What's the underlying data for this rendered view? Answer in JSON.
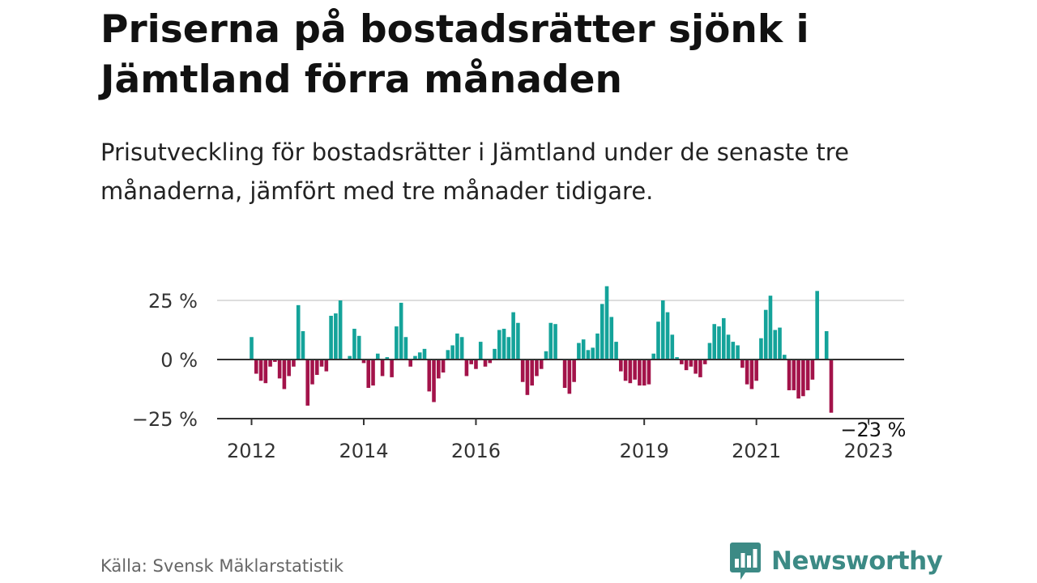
{
  "header": {
    "title": "Priserna på bostadsrätter sjönk i Jämtland förra månaden",
    "subtitle": "Prisutveckling för bostadsrätter i Jämtland under de senaste tre månaderna, jämfört med tre månader tidigare."
  },
  "footer": {
    "source": "Källa: Svensk Mäklarstatistik",
    "brand": "Newsworthy"
  },
  "colors": {
    "positive": "#14a39a",
    "negative": "#a3134a",
    "grid": "#dddddd",
    "zero_line": "#333333"
  },
  "icons": {
    "brand_logo": "bar-chart-speech-bubble-icon"
  },
  "chart_data": {
    "type": "bar",
    "title": "",
    "xlabel": "",
    "ylabel": "",
    "ylim": [
      -25,
      35
    ],
    "yticks": [
      25,
      0,
      -25
    ],
    "ytick_labels": [
      "25 %",
      "0 %",
      "−25 %"
    ],
    "x_start": "2012-01",
    "xticks": [
      "2012",
      "2014",
      "2016",
      "2019",
      "2021",
      "2023"
    ],
    "annotation": {
      "label": "−23 %",
      "month": "2023-02",
      "value": -22.5
    },
    "grid": true,
    "legend": "none",
    "values": [
      9.5,
      -6,
      -9,
      -10,
      -3,
      -1,
      -8,
      -12.5,
      -7,
      -3,
      23,
      12,
      -19.5,
      -10.5,
      -6.5,
      -3,
      -5,
      18.5,
      19.5,
      25,
      0,
      1.5,
      13,
      10,
      -1.5,
      -12,
      -11,
      2.5,
      -7,
      1,
      -7.5,
      14,
      24,
      9.5,
      -3,
      1.5,
      3,
      4.5,
      -13.5,
      -18,
      -8,
      -5.5,
      4,
      6,
      11,
      9.5,
      -7,
      -2,
      -4,
      7.5,
      -3,
      -1.5,
      4.5,
      12.5,
      13,
      9.5,
      20,
      15.5,
      -9.5,
      -15,
      -11,
      -7,
      -4,
      3.5,
      15.5,
      15,
      0,
      -12,
      -14.5,
      -9.5,
      7,
      8.5,
      4,
      5,
      11,
      23.5,
      31,
      18,
      7.5,
      -5,
      -9,
      -10,
      -8.5,
      -11,
      -11,
      -10.5,
      2.5,
      16,
      25,
      20,
      10.5,
      1,
      -2,
      -4.5,
      -3,
      -6,
      -7.5,
      -2,
      7,
      15,
      14,
      17.5,
      10.5,
      7.5,
      6,
      -3.5,
      -10.5,
      -12.5,
      -9,
      9,
      21,
      27,
      12.5,
      13.5,
      2,
      -13,
      -13,
      -16.5,
      -15.5,
      -13,
      -8.5,
      29,
      0,
      12,
      -22.5
    ]
  }
}
